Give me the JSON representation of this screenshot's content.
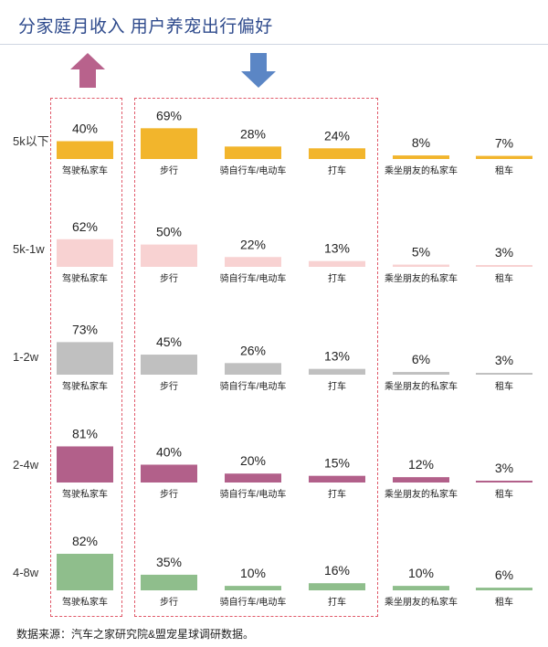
{
  "title": "分家庭月收入  用户养宠出行偏好",
  "source": "数据来源：汽车之家研究院&盟宠星球调研数据。",
  "arrows": {
    "up_color": "#b8628c",
    "down_color": "#5b86c5"
  },
  "chart_data": {
    "type": "bar",
    "categories": [
      "驾驶私家车",
      "步行",
      "骑自行车/电动车",
      "打车",
      "乘坐朋友的私家车",
      "租车"
    ],
    "ylim": [
      0,
      100
    ],
    "grid": false,
    "series": [
      {
        "name": "5k以下",
        "color": "#f2b52c",
        "values": [
          40,
          69,
          28,
          24,
          8,
          7
        ],
        "labels": [
          "40%",
          "69%",
          "28%",
          "24%",
          "8%",
          "7%"
        ]
      },
      {
        "name": "5k-1w",
        "color": "#f8d2d2",
        "values": [
          62,
          50,
          22,
          13,
          5,
          3
        ],
        "labels": [
          "62%",
          "50%",
          "22%",
          "13%",
          "5%",
          "3%"
        ]
      },
      {
        "name": "1-2w",
        "color": "#c0c0c0",
        "values": [
          73,
          45,
          26,
          13,
          6,
          3
        ],
        "labels": [
          "73%",
          "45%",
          "26%",
          "13%",
          "6%",
          "3%"
        ]
      },
      {
        "name": "2-4w",
        "color": "#b2608a",
        "values": [
          81,
          40,
          20,
          15,
          12,
          3
        ],
        "labels": [
          "81%",
          "40%",
          "20%",
          "15%",
          "12%",
          "3%"
        ]
      },
      {
        "name": "4-8w",
        "color": "#8fbe8c",
        "values": [
          82,
          35,
          10,
          16,
          10,
          6
        ],
        "labels": [
          "82%",
          "35%",
          "10%",
          "16%",
          "10%",
          "6%"
        ]
      }
    ]
  }
}
